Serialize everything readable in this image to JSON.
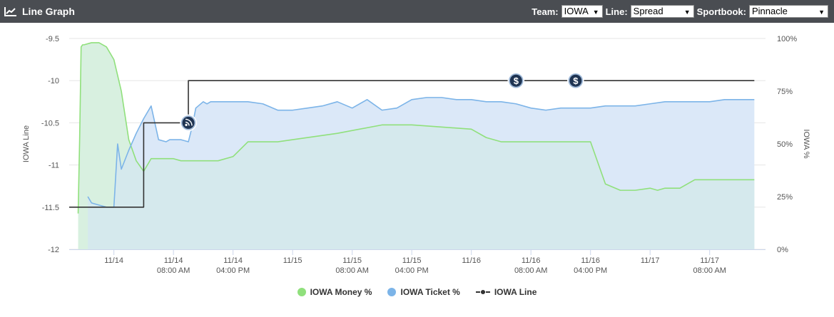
{
  "header": {
    "title": "Line Graph",
    "team_label": "Team:",
    "team_value": "IOWA",
    "line_label": "Line:",
    "line_value": "Spread",
    "book_label": "Sportbook:",
    "book_value": "Pinnacle"
  },
  "chart_data": {
    "type": "line",
    "ylabel_left": "IOWA Line",
    "ylabel_right": "IOWA %",
    "left_ticks": [
      "-9.5",
      "-10",
      "-10.5",
      "-11",
      "-11.5",
      "-12"
    ],
    "right_ticks": [
      "100%",
      "75%",
      "50%",
      "25%",
      "0%"
    ],
    "x_ticks": [
      {
        "l1": "11/14",
        "l2": ""
      },
      {
        "l1": "11/14",
        "l2": "08:00 AM"
      },
      {
        "l1": "11/14",
        "l2": "04:00 PM"
      },
      {
        "l1": "11/15",
        "l2": ""
      },
      {
        "l1": "11/15",
        "l2": "08:00 AM"
      },
      {
        "l1": "11/15",
        "l2": "04:00 PM"
      },
      {
        "l1": "11/16",
        "l2": ""
      },
      {
        "l1": "11/16",
        "l2": "08:00 AM"
      },
      {
        "l1": "11/16",
        "l2": "04:00 PM"
      },
      {
        "l1": "11/17",
        "l2": ""
      },
      {
        "l1": "11/17",
        "l2": "08:00 AM"
      }
    ],
    "ylim_line": [
      -12,
      -9.5
    ],
    "ylim_pct": [
      0,
      100
    ],
    "grid": true,
    "legend_position": "bottom",
    "series": [
      {
        "name": "IOWA Money %",
        "color": "#90e07c",
        "fill": "#e2f8dc",
        "x_hours": [
          -4.8,
          -4.6,
          -4.4,
          -4.2,
          -4,
          -3,
          -2,
          -1,
          0,
          1,
          2,
          3,
          4,
          5,
          6,
          7,
          8,
          9,
          10,
          12,
          14,
          16,
          18,
          20,
          22,
          24,
          30,
          36,
          40,
          44,
          48,
          50,
          52,
          54,
          56,
          58,
          60,
          64,
          66,
          68,
          70,
          72,
          73,
          74,
          76,
          78,
          80,
          82,
          84,
          86
        ],
        "values": [
          17,
          52,
          96,
          97,
          97,
          98,
          98,
          96,
          90,
          75,
          52,
          42,
          37,
          43,
          43,
          43,
          43,
          42,
          42,
          42,
          42,
          44,
          51,
          51,
          51,
          52,
          55,
          59,
          59,
          58,
          57,
          53,
          51,
          51,
          51,
          51,
          51,
          51,
          31,
          28,
          28,
          29,
          28,
          29,
          29,
          33,
          33,
          33,
          33,
          33
        ]
      },
      {
        "name": "IOWA Ticket %",
        "color": "#7cb4e8",
        "fill": "#dbe8f8",
        "x_hours": [
          -3.5,
          -3,
          -2,
          -1,
          0,
          0.5,
          1,
          2,
          3,
          4,
          5,
          6,
          7,
          7.5,
          8,
          9,
          10,
          10.5,
          11,
          12,
          12.5,
          13,
          14,
          16,
          18,
          20,
          22,
          24,
          26,
          28,
          30,
          32,
          34,
          36,
          38,
          40,
          42,
          44,
          46,
          48,
          50,
          52,
          54,
          56,
          58,
          60,
          62,
          64,
          66,
          68,
          70,
          72,
          74,
          76,
          78,
          80,
          82,
          84,
          86
        ],
        "values": [
          25,
          22,
          21,
          20,
          20,
          50,
          38,
          47,
          55,
          62,
          68,
          52,
          51,
          52,
          52,
          52,
          51,
          58,
          67,
          70,
          69,
          70,
          70,
          70,
          70,
          69,
          66,
          66,
          67,
          68,
          70,
          67,
          71,
          66,
          67,
          71,
          72,
          72,
          71,
          71,
          70,
          70,
          69,
          67,
          66,
          67,
          67,
          67,
          68,
          68,
          68,
          69,
          70,
          70,
          70,
          70,
          71,
          71,
          71
        ]
      },
      {
        "name": "IOWA Line",
        "color": "#333333",
        "x_hours": [
          -6,
          4,
          4,
          10,
          10,
          86
        ],
        "values": [
          -11.5,
          -11.5,
          -10.5,
          -10.5,
          -10,
          -10
        ]
      }
    ],
    "markers": [
      {
        "type": "news-icon",
        "x_hours": 10,
        "y_line": -10.5
      },
      {
        "type": "dollar-icon",
        "x_hours": 54,
        "y_line": -10
      },
      {
        "type": "dollar-icon",
        "x_hours": 62,
        "y_line": -10
      }
    ]
  },
  "legend": [
    {
      "label": "IOWA Money %",
      "color": "#90e07c"
    },
    {
      "label": "IOWA Ticket %",
      "color": "#7cb4e8"
    },
    {
      "label": "IOWA Line",
      "color": "#333333"
    }
  ]
}
